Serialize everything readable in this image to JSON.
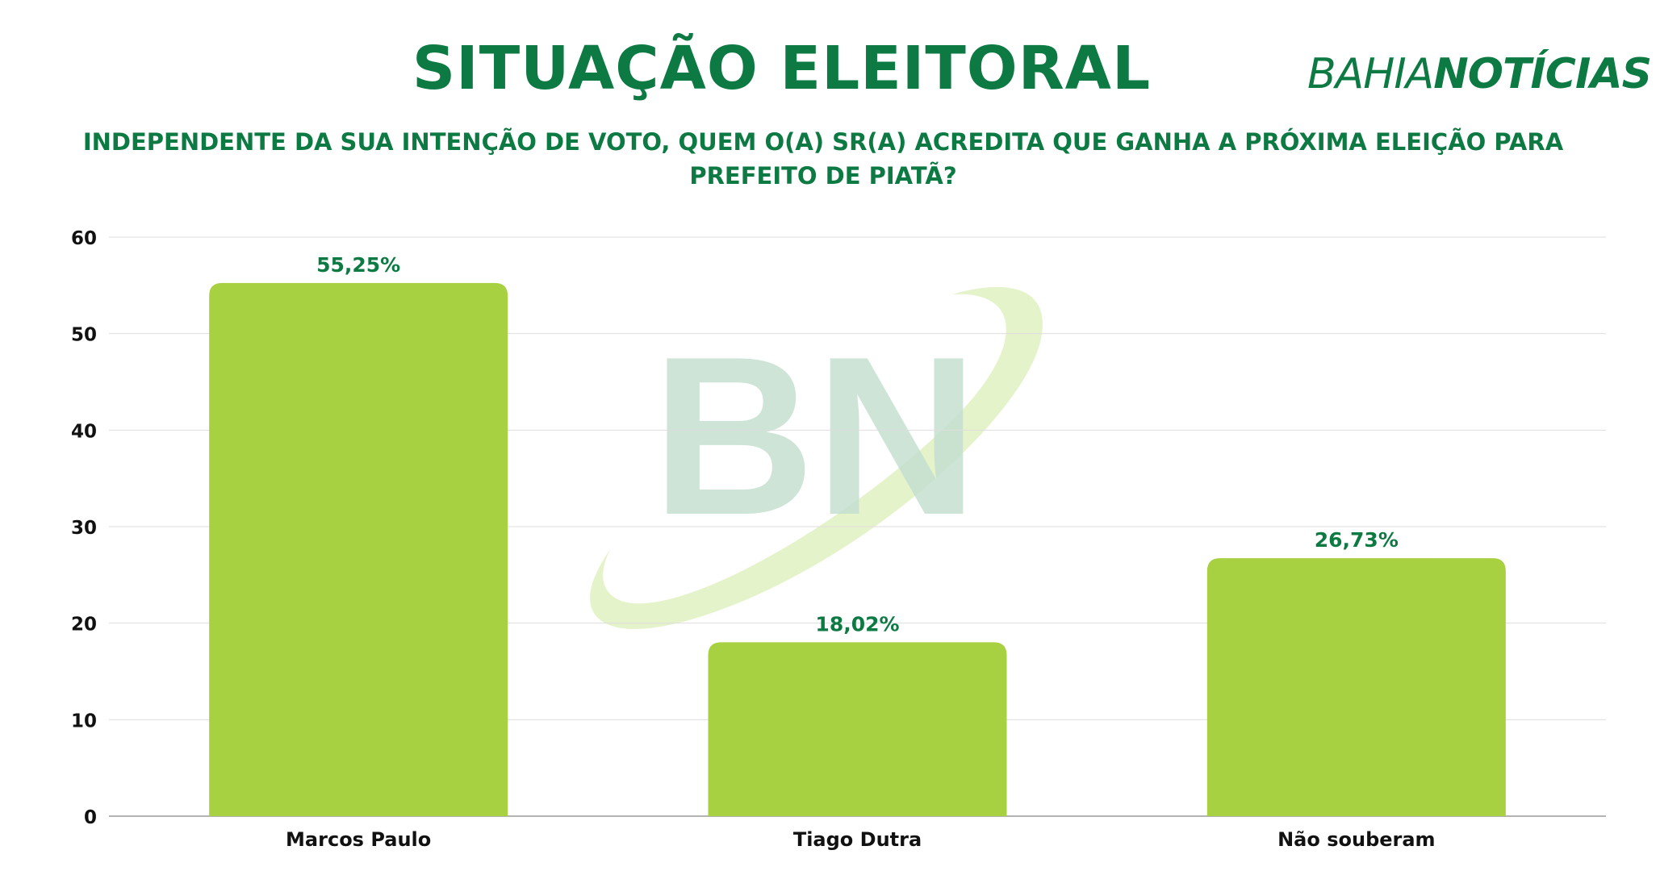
{
  "header": {
    "title": "SITUAÇÃO ELEITORAL",
    "brand_part1": "BAHIA",
    "brand_part2": "NOTÍCIAS",
    "subtitle": "INDEPENDENTE DA SUA INTENÇÃO DE VOTO, QUEM O(A) SR(A) ACREDITA QUE GANHA A PRÓXIMA ELEIÇÃO PARA PREFEITO DE PIATÃ?"
  },
  "watermark": {
    "text": "BN"
  },
  "colors": {
    "brand_green": "#0e7a43",
    "bar_green": "#a8d142",
    "watermark_green": "#c5e0d1"
  },
  "chart_data": {
    "type": "bar",
    "categories": [
      "Marcos Paulo",
      "Tiago Dutra",
      "Não souberam"
    ],
    "values": [
      55.25,
      18.02,
      26.73
    ],
    "data_labels": [
      "55,25%",
      "18,02%",
      "26,73%"
    ],
    "ylim": [
      0,
      60
    ],
    "yticks": [
      "0",
      "10",
      "20",
      "30",
      "40",
      "50",
      "60"
    ],
    "grid": true
  }
}
